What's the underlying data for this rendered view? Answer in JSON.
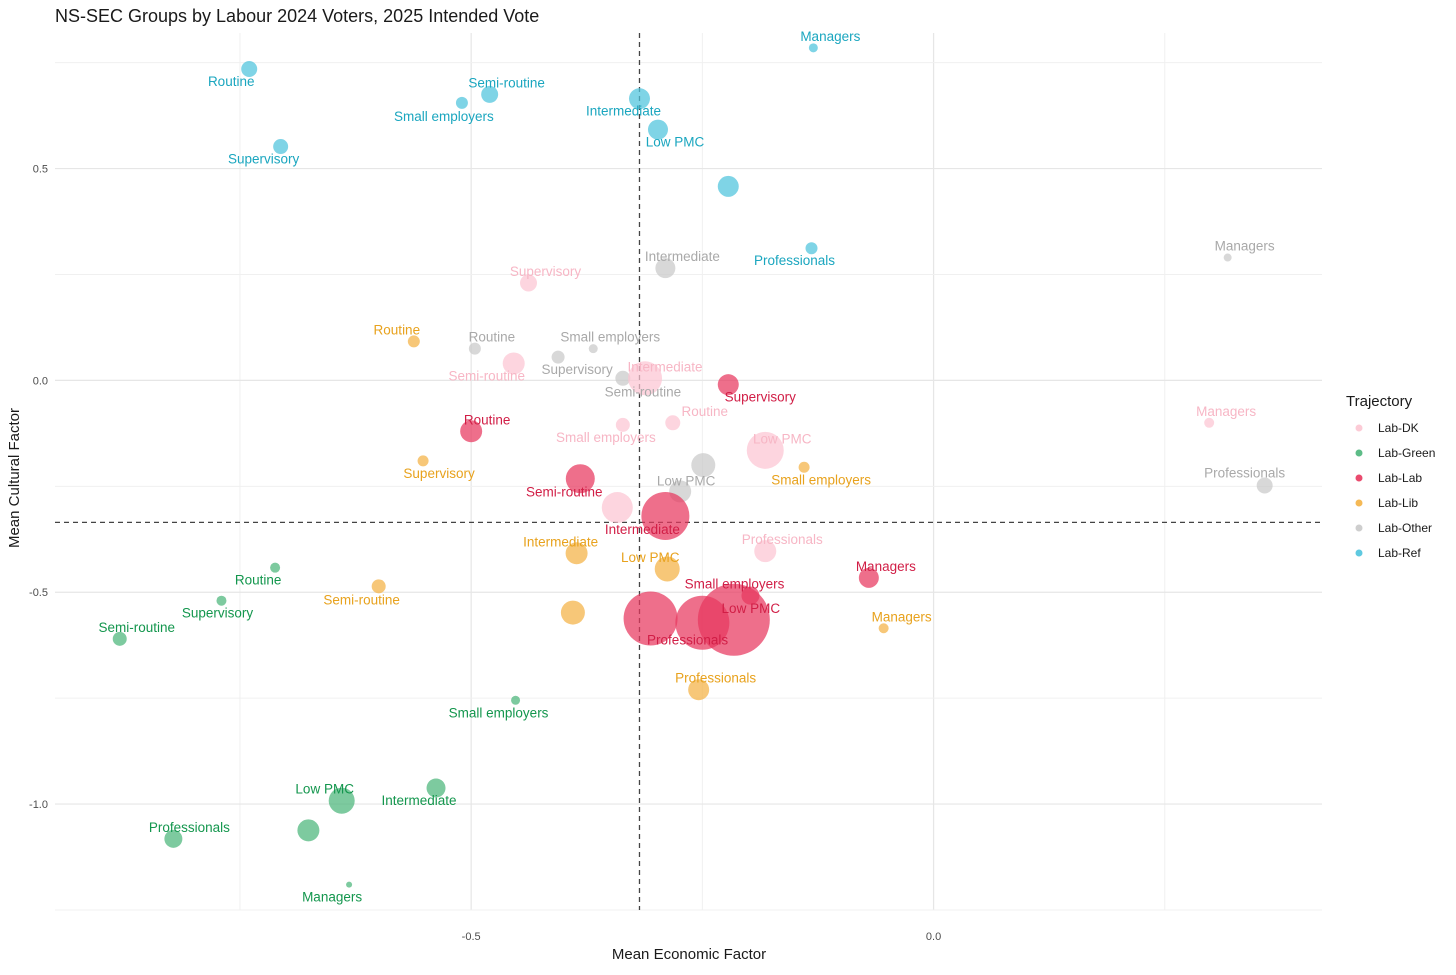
{
  "chart_data": {
    "type": "scatter",
    "title": "NS-SEC Groups by Labour 2024 Voters, 2025 Intended Vote",
    "xlabel": "Mean Economic Factor",
    "ylabel": "Mean Cultural Factor",
    "xlim": [
      -0.95,
      0.42
    ],
    "ylim": [
      -1.25,
      0.82
    ],
    "x_ticks": [
      {
        "value": -0.5,
        "label": "-0.5"
      },
      {
        "value": 0.0,
        "label": "0.0"
      }
    ],
    "y_ticks": [
      {
        "value": 0.5,
        "label": "0.5"
      },
      {
        "value": 0.0,
        "label": "0.0"
      },
      {
        "value": -0.5,
        "label": "-0.5"
      },
      {
        "value": -1.0,
        "label": "-1.0"
      }
    ],
    "reference_lines": {
      "vertical_x": -0.318,
      "horizontal_y": -0.335
    },
    "legend": {
      "title": "Trajectory",
      "entries": [
        {
          "name": "Lab-DK",
          "color": "#fcc5d2"
        },
        {
          "name": "Lab-Green",
          "color": "#4bb57a"
        },
        {
          "name": "Lab-Lab",
          "color": "#e8375e"
        },
        {
          "name": "Lab-Lib",
          "color": "#f4b144"
        },
        {
          "name": "Lab-Other",
          "color": "#c9c9c9"
        },
        {
          "name": "Lab-Ref",
          "color": "#4ec3dd"
        }
      ]
    },
    "series": [
      {
        "name": "Lab-Ref",
        "color": "#4ec3dd",
        "label_color": "#1aa6bf",
        "points": [
          {
            "x": -0.13,
            "y": 0.785,
            "r": 4.5,
            "label": "Managers",
            "ldx": 17,
            "ldy": -7
          },
          {
            "x": -0.74,
            "y": 0.735,
            "r": 8,
            "label": "Routine",
            "ldx": -18,
            "ldy": 17
          },
          {
            "x": -0.48,
            "y": 0.675,
            "r": 8.5,
            "label": "Semi-routine",
            "ldx": 17,
            "ldy": -7
          },
          {
            "x": -0.51,
            "y": 0.655,
            "r": 6,
            "label": "Small employers",
            "ldx": -18,
            "ldy": 18
          },
          {
            "x": -0.318,
            "y": 0.665,
            "r": 10.5,
            "label": "Intermediate",
            "ldx": -16,
            "ldy": 17
          },
          {
            "x": -0.298,
            "y": 0.592,
            "r": 10,
            "label": "Low PMC",
            "ldx": 17,
            "ldy": 17
          },
          {
            "x": -0.706,
            "y": 0.552,
            "r": 7.5,
            "label": "Supervisory",
            "ldx": -17,
            "ldy": 17
          },
          {
            "x": -0.222,
            "y": 0.458,
            "r": 10.5,
            "label": "",
            "ldx": 0,
            "ldy": 0
          },
          {
            "x": -0.132,
            "y": 0.312,
            "r": 6,
            "label": "Professionals",
            "ldx": -17,
            "ldy": 17
          }
        ]
      },
      {
        "name": "Lab-Other",
        "color": "#c9c9c9",
        "label_color": "#a9a9a9",
        "points": [
          {
            "x": 0.318,
            "y": 0.29,
            "r": 4,
            "label": "Managers",
            "ldx": 17,
            "ldy": -7
          },
          {
            "x": -0.29,
            "y": 0.265,
            "r": 10,
            "label": "Intermediate",
            "ldx": 17,
            "ldy": -7
          },
          {
            "x": -0.496,
            "y": 0.075,
            "r": 6,
            "label": "Routine",
            "ldx": 17,
            "ldy": -7
          },
          {
            "x": -0.368,
            "y": 0.075,
            "r": 4.5,
            "label": "Small employers",
            "ldx": 17,
            "ldy": -7
          },
          {
            "x": -0.406,
            "y": 0.055,
            "r": 6.5,
            "label": "Supervisory",
            "ldx": 19,
            "ldy": 17
          },
          {
            "x": -0.336,
            "y": 0.005,
            "r": 7.5,
            "label": "Semi-routine",
            "ldx": 20,
            "ldy": 18
          },
          {
            "x": -0.249,
            "y": -0.2,
            "r": 12,
            "label": "",
            "ldx": 0,
            "ldy": 0
          },
          {
            "x": -0.274,
            "y": -0.262,
            "r": 11,
            "label": "Low PMC",
            "ldx": 6,
            "ldy": -6
          },
          {
            "x": 0.358,
            "y": -0.248,
            "r": 8,
            "label": "Professionals",
            "ldx": -20,
            "ldy": -8
          }
        ]
      },
      {
        "name": "Lab-DK",
        "color": "#fcc5d2",
        "label_color": "#f7b6c5",
        "points": [
          {
            "x": -0.438,
            "y": 0.23,
            "r": 8.5,
            "label": "Supervisory",
            "ldx": 17,
            "ldy": -7
          },
          {
            "x": -0.454,
            "y": 0.04,
            "r": 11,
            "label": "Semi-routine",
            "ldx": -27,
            "ldy": 17
          },
          {
            "x": -0.312,
            "y": 0.005,
            "r": 17,
            "label": "Intermediate",
            "ldx": 20,
            "ldy": -7
          },
          {
            "x": 0.298,
            "y": -0.1,
            "r": 5,
            "label": "Managers",
            "ldx": 17,
            "ldy": -7
          },
          {
            "x": -0.282,
            "y": -0.1,
            "r": 7.5,
            "label": "Routine",
            "ldx": 32,
            "ldy": -7
          },
          {
            "x": -0.336,
            "y": -0.105,
            "r": 7,
            "label": "Small employers",
            "ldx": -17,
            "ldy": 17
          },
          {
            "x": -0.182,
            "y": -0.165,
            "r": 18.5,
            "label": "Low PMC",
            "ldx": 17,
            "ldy": -7
          },
          {
            "x": -0.342,
            "y": -0.3,
            "r": 15.5,
            "label": "",
            "ldx": 0,
            "ldy": 0
          },
          {
            "x": -0.182,
            "y": -0.403,
            "r": 11,
            "label": "Professionals",
            "ldx": 17,
            "ldy": -7
          }
        ]
      },
      {
        "name": "Lab-Lib",
        "color": "#f4b144",
        "label_color": "#e8a21d",
        "points": [
          {
            "x": -0.562,
            "y": 0.092,
            "r": 6,
            "label": "Routine",
            "ldx": -17,
            "ldy": -7
          },
          {
            "x": -0.552,
            "y": -0.19,
            "r": 5.5,
            "label": "Supervisory",
            "ldx": 16,
            "ldy": 17
          },
          {
            "x": -0.14,
            "y": -0.205,
            "r": 5.5,
            "label": "Small employers",
            "ldx": 17,
            "ldy": 17
          },
          {
            "x": -0.386,
            "y": -0.408,
            "r": 11,
            "label": "Intermediate",
            "ldx": -16,
            "ldy": -7
          },
          {
            "x": -0.288,
            "y": -0.445,
            "r": 12.5,
            "label": "Low PMC",
            "ldx": -17,
            "ldy": -7
          },
          {
            "x": -0.6,
            "y": -0.486,
            "r": 7,
            "label": "Semi-routine",
            "ldx": -17,
            "ldy": 18
          },
          {
            "x": -0.39,
            "y": -0.548,
            "r": 12,
            "label": "",
            "ldx": 0,
            "ldy": 0
          },
          {
            "x": -0.054,
            "y": -0.585,
            "r": 5,
            "label": "Managers",
            "ldx": 18,
            "ldy": -7
          },
          {
            "x": -0.254,
            "y": -0.73,
            "r": 10.5,
            "label": "Professionals",
            "ldx": 17,
            "ldy": -7
          }
        ]
      },
      {
        "name": "Lab-Lab",
        "color": "#e8375e",
        "label_color": "#d11e46",
        "points": [
          {
            "x": -0.222,
            "y": -0.01,
            "r": 10.5,
            "label": "Supervisory",
            "ldx": 32,
            "ldy": 17
          },
          {
            "x": -0.5,
            "y": -0.12,
            "r": 11,
            "label": "Routine",
            "ldx": 16,
            "ldy": -7
          },
          {
            "x": -0.382,
            "y": -0.232,
            "r": 14.5,
            "label": "Semi-routine",
            "ldx": -16,
            "ldy": 18
          },
          {
            "x": -0.29,
            "y": -0.32,
            "r": 24,
            "label": "Intermediate",
            "ldx": -23,
            "ldy": 18
          },
          {
            "x": -0.07,
            "y": -0.466,
            "r": 10,
            "label": "Managers",
            "ldx": 17,
            "ldy": -7
          },
          {
            "x": -0.198,
            "y": -0.508,
            "r": 9,
            "label": "Small employers",
            "ldx": -16,
            "ldy": -7
          },
          {
            "x": -0.306,
            "y": -0.562,
            "r": 27,
            "label": "Professionals",
            "ldx": 37,
            "ldy": 26
          },
          {
            "x": -0.25,
            "y": -0.572,
            "r": 27,
            "label": "",
            "ldx": 0,
            "ldy": 0
          },
          {
            "x": -0.216,
            "y": -0.565,
            "r": 36,
            "label": "Low PMC",
            "ldx": 17,
            "ldy": -7
          }
        ]
      },
      {
        "name": "Lab-Green",
        "color": "#4bb57a",
        "label_color": "#13964d",
        "points": [
          {
            "x": -0.712,
            "y": -0.442,
            "r": 5,
            "label": "Routine",
            "ldx": -17,
            "ldy": 17
          },
          {
            "x": -0.77,
            "y": -0.52,
            "r": 5,
            "label": "Supervisory",
            "ldx": -4,
            "ldy": 17
          },
          {
            "x": -0.88,
            "y": -0.61,
            "r": 7,
            "label": "Semi-routine",
            "ldx": 17,
            "ldy": -7
          },
          {
            "x": -0.452,
            "y": -0.755,
            "r": 4.5,
            "label": "Small employers",
            "ldx": -17,
            "ldy": 17
          },
          {
            "x": -0.538,
            "y": -0.962,
            "r": 9.5,
            "label": "Intermediate",
            "ldx": -17,
            "ldy": 17
          },
          {
            "x": -0.64,
            "y": -0.992,
            "r": 13,
            "label": "Low PMC",
            "ldx": -17,
            "ldy": -7
          },
          {
            "x": -0.676,
            "y": -1.062,
            "r": 11,
            "label": "",
            "ldx": 0,
            "ldy": 0
          },
          {
            "x": -0.822,
            "y": -1.082,
            "r": 9,
            "label": "Professionals",
            "ldx": 16,
            "ldy": -7
          },
          {
            "x": -0.632,
            "y": -1.19,
            "r": 3,
            "label": "Managers",
            "ldx": -17,
            "ldy": 17
          }
        ]
      }
    ]
  }
}
